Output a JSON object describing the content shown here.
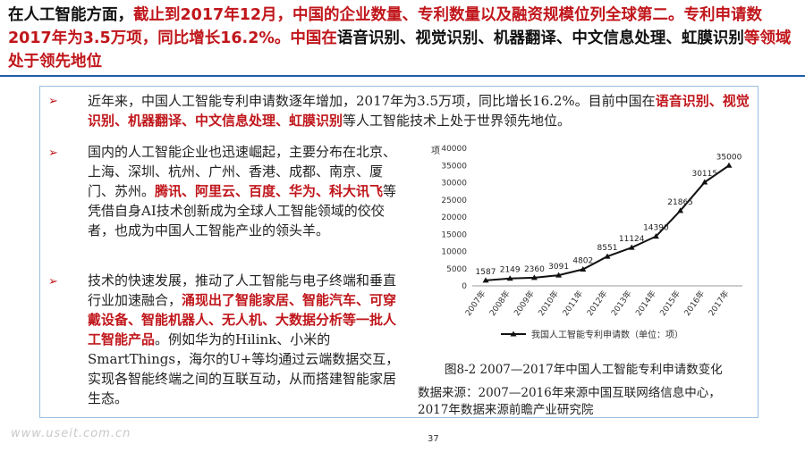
{
  "title": {
    "p1": "在人工智能方面，",
    "p2": "截止到2017年12月，中国的企业数量、专利数量以及融资规模位列全球第二。专利申请数2017年为3.5万项，同比增长16.2%。中国在",
    "p3": "语音识别、视觉识别、机器翻译、中文信息处理、虹膜识别",
    "p4": "等领域处于领先地位"
  },
  "bullet1": {
    "a": "近年来，中国人工智能专利申请数逐年增加，2017年为3.5万项，同比增长16.2%。目前中国在",
    "b": "语音识别、视觉识别、机器翻译、中文信息处理、虹膜识别",
    "c": "等人工智能技术上处于世界领先地位。"
  },
  "bullet2": {
    "a": "国内的人工智能企业也迅速崛起，主要分布在北京、上海、深圳、杭州、广州、香港、成都、南京、厦门、苏州。",
    "b": "腾讯、阿里云、百度、华为、科大讯飞",
    "c": "等凭借自身AI技术创新成为全球人工智能领域的佼佼者，也成为中国人工智能产业的领头羊。"
  },
  "bullet3": {
    "a": "技术的快速发展，推动了人工智能与电子终端和垂直行业加速融合，",
    "b": "涌现出了智能家居、智能汽车、可穿戴设备、智能机器人、无人机、大数据分析等一批人工智能产品",
    "c": "。例如华为的Hilink、小米的SmartThings，海尔的U+等均通过云端数据交互，实现各智能终端之间的互联互动，从而搭建智能家居生态。"
  },
  "bullet_glyph": "➢",
  "figure": {
    "caption": "图8-2  2007—2017年中国人工智能专利申请数变化",
    "source_line1": "数据来源：2007—2016年来源中国互联网络信息中心，",
    "source_line2": "2017年数据来源前瞻产业研究院"
  },
  "page_number": "37",
  "watermark": "www.useit.com.cn",
  "colors": {
    "accent_red": "#c0161b",
    "rule_blue": "#1f5fa8",
    "box_border": "#9bbfe0"
  },
  "chart_data": {
    "type": "line",
    "ylabel": "项",
    "ylim": [
      0,
      40000
    ],
    "yticks": [
      0,
      5000,
      10000,
      15000,
      20000,
      25000,
      30000,
      35000,
      40000
    ],
    "categories": [
      "2007年",
      "2008年",
      "2009年",
      "2010年",
      "2011年",
      "2012年",
      "2013年",
      "2014年",
      "2015年",
      "2016年",
      "2017年"
    ],
    "series": [
      {
        "name": "我国人工智能专利申请数（单位：项）",
        "values": [
          1587,
          2149,
          2360,
          3091,
          4802,
          8551,
          11124,
          14390,
          21865,
          30115,
          35000
        ]
      }
    ],
    "data_labels": true,
    "grid": false,
    "legend": "bottom"
  }
}
